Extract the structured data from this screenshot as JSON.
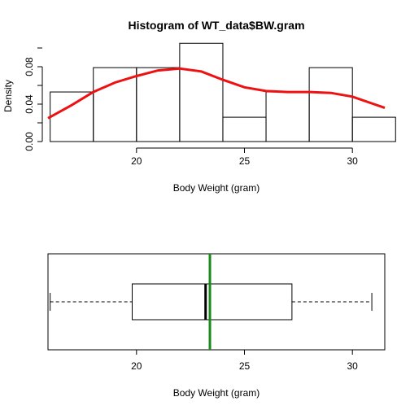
{
  "chart_data": [
    {
      "type": "histogram",
      "title": "Histogram of WT_data$BW.gram",
      "xlabel": "Body Weight (gram)",
      "ylabel": "Density",
      "xlim": [
        15.9,
        31.5
      ],
      "ylim": [
        0,
        0.1
      ],
      "x_ticks": [
        20,
        25,
        30
      ],
      "x_tick_labels": [
        "20",
        "25",
        "30"
      ],
      "y_ticks": [
        0.0,
        0.04,
        0.08
      ],
      "y_tick_labels": [
        "0.00",
        "0.04",
        "0.08"
      ],
      "bins": [
        {
          "x0": 16,
          "x1": 18,
          "density": 0.053
        },
        {
          "x0": 18,
          "x1": 20,
          "density": 0.079
        },
        {
          "x0": 20,
          "x1": 22,
          "density": 0.079
        },
        {
          "x0": 22,
          "x1": 24,
          "density": 0.105
        },
        {
          "x0": 24,
          "x1": 26,
          "density": 0.026
        },
        {
          "x0": 26,
          "x1": 28,
          "density": 0.053
        },
        {
          "x0": 28,
          "x1": 30,
          "density": 0.079
        },
        {
          "x0": 30,
          "x1": 32,
          "density": 0.026
        }
      ],
      "density_curve": {
        "color": "#ee1111",
        "x": [
          15.9,
          17,
          18,
          19,
          20,
          21,
          22,
          23,
          24,
          25,
          26,
          27,
          28,
          29,
          30,
          31,
          31.5
        ],
        "y": [
          0.025,
          0.039,
          0.053,
          0.063,
          0.07,
          0.076,
          0.078,
          0.075,
          0.066,
          0.058,
          0.054,
          0.053,
          0.053,
          0.052,
          0.048,
          0.04,
          0.036
        ]
      }
    },
    {
      "type": "boxplot",
      "xlabel": "Body Weight (gram)",
      "xlim": [
        15.9,
        31.5
      ],
      "x_ticks": [
        20,
        25,
        30
      ],
      "x_tick_labels": [
        "20",
        "25",
        "30"
      ],
      "whisker_low": 16.0,
      "q1": 19.8,
      "median": 23.2,
      "q3": 27.2,
      "whisker_high": 30.9,
      "mean": 23.4,
      "mean_line_color": "#1a8a1a"
    }
  ]
}
